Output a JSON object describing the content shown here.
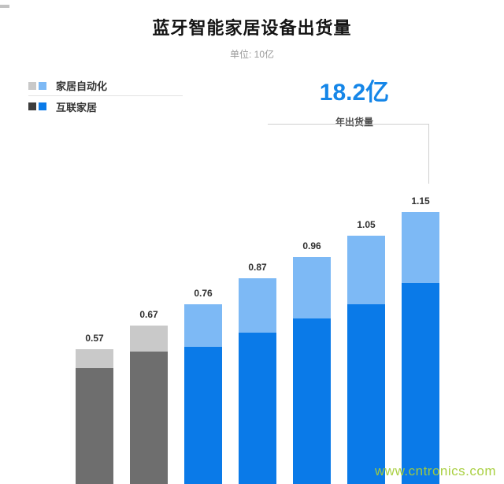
{
  "header": {
    "title": "蓝牙智能家居设备出货量",
    "subtitle": "单位: 10亿"
  },
  "legend": {
    "items": [
      {
        "label": "家居自动化",
        "swatches": [
          "#c9c9c9",
          "#7db9f5"
        ]
      },
      {
        "label": "互联家居",
        "swatches": [
          "#3d3d3d",
          "#0a7ae8"
        ]
      }
    ]
  },
  "annotation": {
    "value": "18.2亿",
    "label": "年出货量",
    "color": "#1586e8"
  },
  "watermark": {
    "text": "www.cntronics.com",
    "color": "#a6ce39"
  },
  "chart_data": {
    "type": "bar",
    "stacked": true,
    "title": "蓝牙智能家居设备出货量",
    "unit_label": "单位: 10亿",
    "categories": [
      "",
      "",
      "",
      "",
      "",
      "",
      ""
    ],
    "series": [
      {
        "name": "互联家居",
        "values": [
          0.49,
          0.56,
          0.58,
          0.64,
          0.7,
          0.76,
          0.85
        ]
      },
      {
        "name": "家居自动化",
        "values": [
          0.08,
          0.11,
          0.18,
          0.23,
          0.26,
          0.29,
          0.3
        ]
      }
    ],
    "totals": [
      0.57,
      0.67,
      0.76,
      0.87,
      0.96,
      1.05,
      1.15
    ],
    "value_labels": [
      "0.57",
      "0.67",
      "0.76",
      "0.87",
      "0.96",
      "1.05",
      "1.15"
    ],
    "annotation_total": "18.2亿",
    "bar_palettes": [
      "gray",
      "gray",
      "blue",
      "blue",
      "blue",
      "blue",
      "blue"
    ],
    "palettes": {
      "gray": {
        "bottom": "#6e6e6e",
        "top": "#c9c9c9"
      },
      "blue": {
        "bottom": "#0a7ae8",
        "top": "#7db9f5"
      }
    },
    "legend_position": "top-left",
    "grid": false,
    "xlabel": "",
    "ylabel": "",
    "ylim": [
      0,
      1.2
    ]
  }
}
